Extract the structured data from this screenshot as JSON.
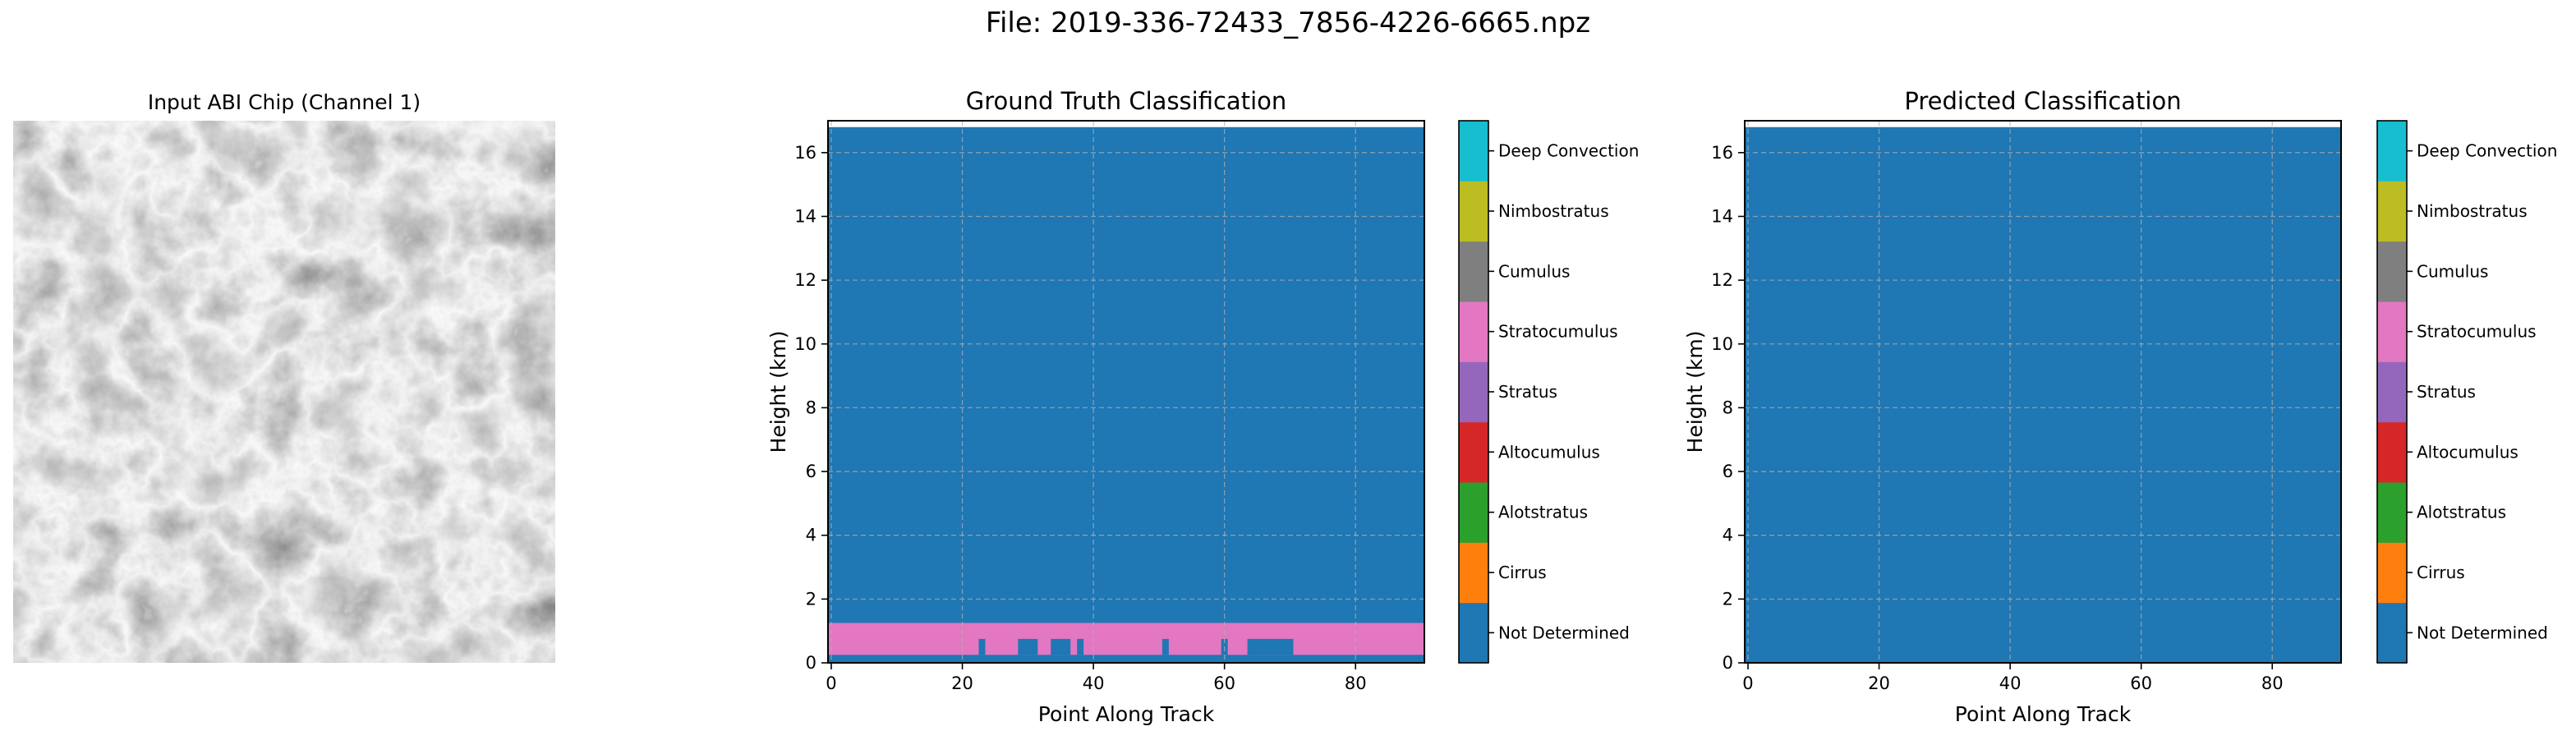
{
  "figure": {
    "suptitle": "File: 2019-336-72433_7856-4226-6665.npz"
  },
  "input_panel": {
    "title": "Input ABI Chip (Channel 1)"
  },
  "class_colors": {
    "Not Determined": "#1f77b4",
    "Cirrus": "#ff7f0e",
    "Alotstratus": "#2ca02c",
    "Altocumulus": "#d62728",
    "Stratus": "#9467bd",
    "Stratocumulus": "#e377c2",
    "Cumulus": "#7f7f7f",
    "Nimbostratus": "#bcbd22",
    "Deep Convection": "#17becf"
  },
  "chart_data": [
    {
      "type": "heatmap",
      "title": "Ground Truth Classification",
      "xlabel": "Point Along Track",
      "ylabel": "Height (km)",
      "xlim": [
        -0.5,
        90.5
      ],
      "ylim": [
        0,
        17
      ],
      "xticks": [
        0,
        20,
        40,
        60,
        80
      ],
      "yticks": [
        0,
        2,
        4,
        6,
        8,
        10,
        12,
        14,
        16
      ],
      "grid": true,
      "background_class": "Not Determined",
      "data_top_km": 16.8,
      "layers": [
        {
          "class": "Stratocumulus",
          "x": [
            -0.5,
            90.5
          ],
          "height_km": [
            0.25,
            1.25
          ]
        },
        {
          "class": "Not Determined",
          "x": [
            22.5,
            23.5
          ],
          "height_km": [
            0.25,
            0.75
          ]
        },
        {
          "class": "Not Determined",
          "x": [
            28.5,
            31.5
          ],
          "height_km": [
            0.25,
            0.75
          ]
        },
        {
          "class": "Not Determined",
          "x": [
            33.5,
            36.5
          ],
          "height_km": [
            0.25,
            0.75
          ]
        },
        {
          "class": "Not Determined",
          "x": [
            37.5,
            38.5
          ],
          "height_km": [
            0.25,
            0.75
          ]
        },
        {
          "class": "Not Determined",
          "x": [
            50.5,
            51.5
          ],
          "height_km": [
            0.25,
            0.75
          ]
        },
        {
          "class": "Not Determined",
          "x": [
            59.5,
            60.5
          ],
          "height_km": [
            0.25,
            0.75
          ]
        },
        {
          "class": "Not Determined",
          "x": [
            63.5,
            70.5
          ],
          "height_km": [
            0.25,
            0.75
          ]
        }
      ],
      "colorbar": [
        "Not Determined",
        "Cirrus",
        "Alotstratus",
        "Altocumulus",
        "Stratus",
        "Stratocumulus",
        "Cumulus",
        "Nimbostratus",
        "Deep Convection"
      ]
    },
    {
      "type": "heatmap",
      "title": "Predicted Classification",
      "xlabel": "Point Along Track",
      "ylabel": "Height (km)",
      "xlim": [
        -0.5,
        90.5
      ],
      "ylim": [
        0,
        17
      ],
      "xticks": [
        0,
        20,
        40,
        60,
        80
      ],
      "yticks": [
        0,
        2,
        4,
        6,
        8,
        10,
        12,
        14,
        16
      ],
      "grid": true,
      "background_class": "Not Determined",
      "data_top_km": 16.8,
      "layers": [],
      "colorbar": [
        "Not Determined",
        "Cirrus",
        "Alotstratus",
        "Altocumulus",
        "Stratus",
        "Stratocumulus",
        "Cumulus",
        "Nimbostratus",
        "Deep Convection"
      ]
    }
  ]
}
